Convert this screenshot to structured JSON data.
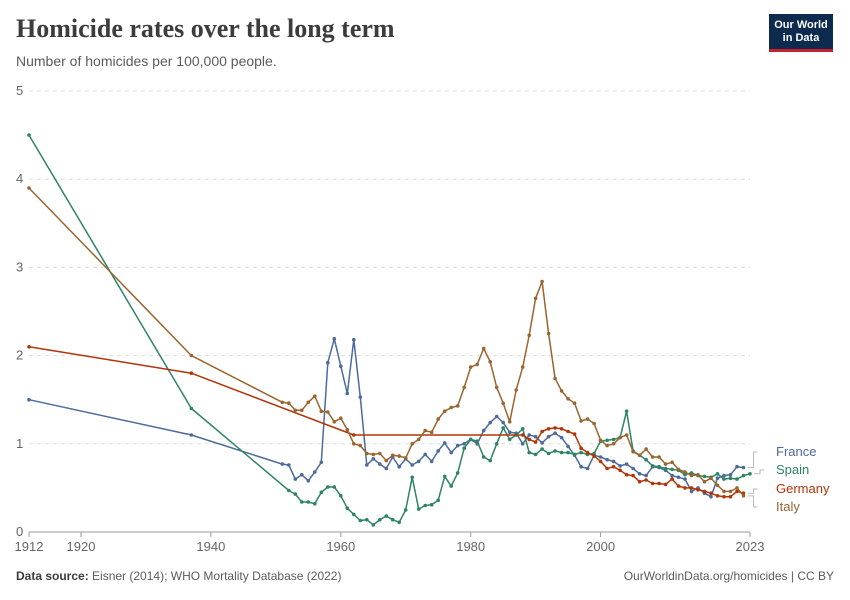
{
  "header": {
    "title": "Homicide rates over the long term",
    "subtitle": "Number of homicides per 100,000 people.",
    "logo_line1": "Our World",
    "logo_line2": "in Data"
  },
  "footer": {
    "source_label": "Data source:",
    "source_text": " Eisner (2014); WHO Mortality Database (2022)",
    "url": "OurWorldinData.org/homicides | CC BY"
  },
  "chart_data": {
    "type": "line",
    "title": "Homicide rates over the long term",
    "subtitle": "Number of homicides per 100,000 people.",
    "xlabel": "",
    "ylabel": "",
    "xlim": [
      1912,
      2023
    ],
    "ylim": [
      0,
      5
    ],
    "x_ticks": [
      {
        "value": 1912,
        "label": "1912"
      },
      {
        "value": 1920,
        "label": "1920"
      },
      {
        "value": 1940,
        "label": "1940"
      },
      {
        "value": 1960,
        "label": "1960"
      },
      {
        "value": 1980,
        "label": "1980"
      },
      {
        "value": 2000,
        "label": "2000"
      },
      {
        "value": 2023,
        "label": "2023"
      }
    ],
    "y_ticks": [
      {
        "value": 0,
        "label": "0"
      },
      {
        "value": 1,
        "label": "1"
      },
      {
        "value": 2,
        "label": "2"
      },
      {
        "value": 3,
        "label": "3"
      },
      {
        "value": 4,
        "label": "4"
      },
      {
        "value": 5,
        "label": "5"
      }
    ],
    "grid": "horizontal-dashed",
    "legend_position": "right",
    "series": [
      {
        "name": "France",
        "color": "#4c6a9c",
        "points": [
          [
            1912,
            1.5
          ],
          [
            1937,
            1.1
          ],
          [
            1951,
            0.77
          ],
          [
            1952,
            0.76
          ],
          [
            1953,
            0.6
          ],
          [
            1954,
            0.65
          ],
          [
            1955,
            0.58
          ],
          [
            1956,
            0.68
          ],
          [
            1957,
            0.79
          ],
          [
            1958,
            1.92
          ],
          [
            1959,
            2.19
          ],
          [
            1960,
            1.88
          ],
          [
            1961,
            1.57
          ],
          [
            1962,
            2.18
          ],
          [
            1963,
            1.53
          ],
          [
            1964,
            0.76
          ],
          [
            1965,
            0.83
          ],
          [
            1966,
            0.77
          ],
          [
            1967,
            0.72
          ],
          [
            1968,
            0.85
          ],
          [
            1969,
            0.74
          ],
          [
            1970,
            0.83
          ],
          [
            1971,
            0.76
          ],
          [
            1972,
            0.8
          ],
          [
            1973,
            0.88
          ],
          [
            1974,
            0.8
          ],
          [
            1975,
            0.92
          ],
          [
            1976,
            1.01
          ],
          [
            1977,
            0.9
          ],
          [
            1978,
            0.98
          ],
          [
            1979,
            1.0
          ],
          [
            1980,
            1.05
          ],
          [
            1981,
            1.0
          ],
          [
            1982,
            1.15
          ],
          [
            1983,
            1.24
          ],
          [
            1984,
            1.31
          ],
          [
            1985,
            1.24
          ],
          [
            1986,
            1.13
          ],
          [
            1987,
            1.12
          ],
          [
            1988,
            1.0
          ],
          [
            1989,
            1.1
          ],
          [
            1990,
            1.08
          ],
          [
            1991,
            1.01
          ],
          [
            1992,
            1.08
          ],
          [
            1993,
            1.12
          ],
          [
            1994,
            1.07
          ],
          [
            1995,
            0.97
          ],
          [
            1996,
            0.87
          ],
          [
            1997,
            0.74
          ],
          [
            1998,
            0.72
          ],
          [
            1999,
            0.87
          ],
          [
            2000,
            0.85
          ],
          [
            2001,
            0.82
          ],
          [
            2002,
            0.8
          ],
          [
            2003,
            0.75
          ],
          [
            2004,
            0.77
          ],
          [
            2005,
            0.72
          ],
          [
            2006,
            0.66
          ],
          [
            2007,
            0.64
          ],
          [
            2008,
            0.74
          ],
          [
            2009,
            0.73
          ],
          [
            2010,
            0.7
          ],
          [
            2011,
            0.64
          ],
          [
            2012,
            0.62
          ],
          [
            2013,
            0.6
          ],
          [
            2014,
            0.46
          ],
          [
            2015,
            0.5
          ],
          [
            2016,
            0.44
          ],
          [
            2017,
            0.4
          ],
          [
            2018,
            0.61
          ],
          [
            2019,
            0.64
          ],
          [
            2020,
            0.65
          ],
          [
            2021,
            0.74
          ],
          [
            2022,
            0.73
          ]
        ]
      },
      {
        "name": "Spain",
        "color": "#2e8464",
        "points": [
          [
            1912,
            4.5
          ],
          [
            1937,
            1.4
          ],
          [
            1952,
            0.47
          ],
          [
            1953,
            0.43
          ],
          [
            1954,
            0.34
          ],
          [
            1955,
            0.34
          ],
          [
            1956,
            0.32
          ],
          [
            1957,
            0.45
          ],
          [
            1958,
            0.51
          ],
          [
            1959,
            0.51
          ],
          [
            1960,
            0.41
          ],
          [
            1961,
            0.27
          ],
          [
            1962,
            0.2
          ],
          [
            1963,
            0.13
          ],
          [
            1964,
            0.14
          ],
          [
            1965,
            0.08
          ],
          [
            1966,
            0.14
          ],
          [
            1967,
            0.18
          ],
          [
            1968,
            0.14
          ],
          [
            1969,
            0.11
          ],
          [
            1970,
            0.25
          ],
          [
            1971,
            0.62
          ],
          [
            1972,
            0.26
          ],
          [
            1973,
            0.3
          ],
          [
            1974,
            0.31
          ],
          [
            1975,
            0.36
          ],
          [
            1976,
            0.63
          ],
          [
            1977,
            0.52
          ],
          [
            1978,
            0.67
          ],
          [
            1979,
            0.95
          ],
          [
            1980,
            1.05
          ],
          [
            1981,
            1.03
          ],
          [
            1982,
            0.85
          ],
          [
            1983,
            0.81
          ],
          [
            1984,
            1.0
          ],
          [
            1985,
            1.18
          ],
          [
            1986,
            1.05
          ],
          [
            1987,
            1.1
          ],
          [
            1988,
            1.17
          ],
          [
            1989,
            0.9
          ],
          [
            1990,
            0.88
          ],
          [
            1991,
            0.94
          ],
          [
            1992,
            0.89
          ],
          [
            1993,
            0.92
          ],
          [
            1994,
            0.9
          ],
          [
            1995,
            0.9
          ],
          [
            1996,
            0.88
          ],
          [
            1997,
            0.9
          ],
          [
            1998,
            0.88
          ],
          [
            1999,
            0.89
          ],
          [
            2000,
            1.03
          ],
          [
            2001,
            1.04
          ],
          [
            2002,
            1.05
          ],
          [
            2003,
            1.07
          ],
          [
            2004,
            1.37
          ],
          [
            2005,
            0.92
          ],
          [
            2006,
            0.87
          ],
          [
            2007,
            0.82
          ],
          [
            2008,
            0.75
          ],
          [
            2009,
            0.74
          ],
          [
            2010,
            0.72
          ],
          [
            2011,
            0.71
          ],
          [
            2012,
            0.7
          ],
          [
            2013,
            0.65
          ],
          [
            2014,
            0.67
          ],
          [
            2015,
            0.64
          ],
          [
            2016,
            0.63
          ],
          [
            2017,
            0.62
          ],
          [
            2018,
            0.66
          ],
          [
            2019,
            0.6
          ],
          [
            2020,
            0.61
          ],
          [
            2021,
            0.6
          ],
          [
            2022,
            0.64
          ],
          [
            2023,
            0.66
          ]
        ]
      },
      {
        "name": "Germany",
        "color": "#b13507",
        "points": [
          [
            1912,
            2.1
          ],
          [
            1937,
            1.8
          ],
          [
            1962,
            1.1
          ],
          [
            1988,
            1.1
          ],
          [
            1989,
            1.05
          ],
          [
            1990,
            1.02
          ],
          [
            1991,
            1.14
          ],
          [
            1992,
            1.17
          ],
          [
            1993,
            1.18
          ],
          [
            1994,
            1.17
          ],
          [
            1995,
            1.14
          ],
          [
            1996,
            1.11
          ],
          [
            1997,
            0.95
          ],
          [
            1998,
            0.9
          ],
          [
            1999,
            0.86
          ],
          [
            2000,
            0.8
          ],
          [
            2001,
            0.72
          ],
          [
            2002,
            0.74
          ],
          [
            2003,
            0.7
          ],
          [
            2004,
            0.65
          ],
          [
            2005,
            0.64
          ],
          [
            2006,
            0.57
          ],
          [
            2007,
            0.59
          ],
          [
            2008,
            0.55
          ],
          [
            2009,
            0.55
          ],
          [
            2010,
            0.54
          ],
          [
            2011,
            0.6
          ],
          [
            2012,
            0.52
          ],
          [
            2013,
            0.5
          ],
          [
            2014,
            0.5
          ],
          [
            2015,
            0.48
          ],
          [
            2016,
            0.46
          ],
          [
            2017,
            0.44
          ],
          [
            2018,
            0.41
          ],
          [
            2019,
            0.4
          ],
          [
            2020,
            0.4
          ],
          [
            2021,
            0.46
          ],
          [
            2022,
            0.44
          ]
        ]
      },
      {
        "name": "Italy",
        "color": "#9a652e",
        "points": [
          [
            1912,
            3.9
          ],
          [
            1937,
            2.0
          ],
          [
            1951,
            1.47
          ],
          [
            1952,
            1.46
          ],
          [
            1953,
            1.38
          ],
          [
            1954,
            1.38
          ],
          [
            1955,
            1.47
          ],
          [
            1956,
            1.54
          ],
          [
            1957,
            1.37
          ],
          [
            1958,
            1.36
          ],
          [
            1959,
            1.25
          ],
          [
            1960,
            1.29
          ],
          [
            1961,
            1.16
          ],
          [
            1962,
            1.0
          ],
          [
            1963,
            0.98
          ],
          [
            1964,
            0.89
          ],
          [
            1965,
            0.88
          ],
          [
            1966,
            0.89
          ],
          [
            1967,
            0.81
          ],
          [
            1968,
            0.87
          ],
          [
            1969,
            0.86
          ],
          [
            1970,
            0.84
          ],
          [
            1971,
            1.0
          ],
          [
            1972,
            1.05
          ],
          [
            1973,
            1.15
          ],
          [
            1974,
            1.13
          ],
          [
            1975,
            1.28
          ],
          [
            1976,
            1.37
          ],
          [
            1977,
            1.41
          ],
          [
            1978,
            1.43
          ],
          [
            1979,
            1.64
          ],
          [
            1980,
            1.87
          ],
          [
            1981,
            1.9
          ],
          [
            1982,
            2.08
          ],
          [
            1983,
            1.93
          ],
          [
            1984,
            1.64
          ],
          [
            1985,
            1.46
          ],
          [
            1986,
            1.25
          ],
          [
            1987,
            1.61
          ],
          [
            1988,
            1.87
          ],
          [
            1989,
            2.23
          ],
          [
            1990,
            2.65
          ],
          [
            1991,
            2.84
          ],
          [
            1992,
            2.25
          ],
          [
            1993,
            1.74
          ],
          [
            1994,
            1.6
          ],
          [
            1995,
            1.51
          ],
          [
            1996,
            1.46
          ],
          [
            1997,
            1.26
          ],
          [
            1998,
            1.28
          ],
          [
            1999,
            1.23
          ],
          [
            2000,
            1.04
          ],
          [
            2001,
            0.98
          ],
          [
            2002,
            1.0
          ],
          [
            2003,
            1.07
          ],
          [
            2004,
            1.1
          ],
          [
            2005,
            0.91
          ],
          [
            2006,
            0.87
          ],
          [
            2007,
            0.94
          ],
          [
            2008,
            0.85
          ],
          [
            2009,
            0.85
          ],
          [
            2010,
            0.77
          ],
          [
            2011,
            0.79
          ],
          [
            2012,
            0.71
          ],
          [
            2013,
            0.68
          ],
          [
            2014,
            0.64
          ],
          [
            2015,
            0.65
          ],
          [
            2016,
            0.57
          ],
          [
            2017,
            0.61
          ],
          [
            2018,
            0.53
          ],
          [
            2019,
            0.46
          ],
          [
            2020,
            0.46
          ],
          [
            2021,
            0.5
          ],
          [
            2022,
            0.41
          ]
        ]
      }
    ]
  }
}
